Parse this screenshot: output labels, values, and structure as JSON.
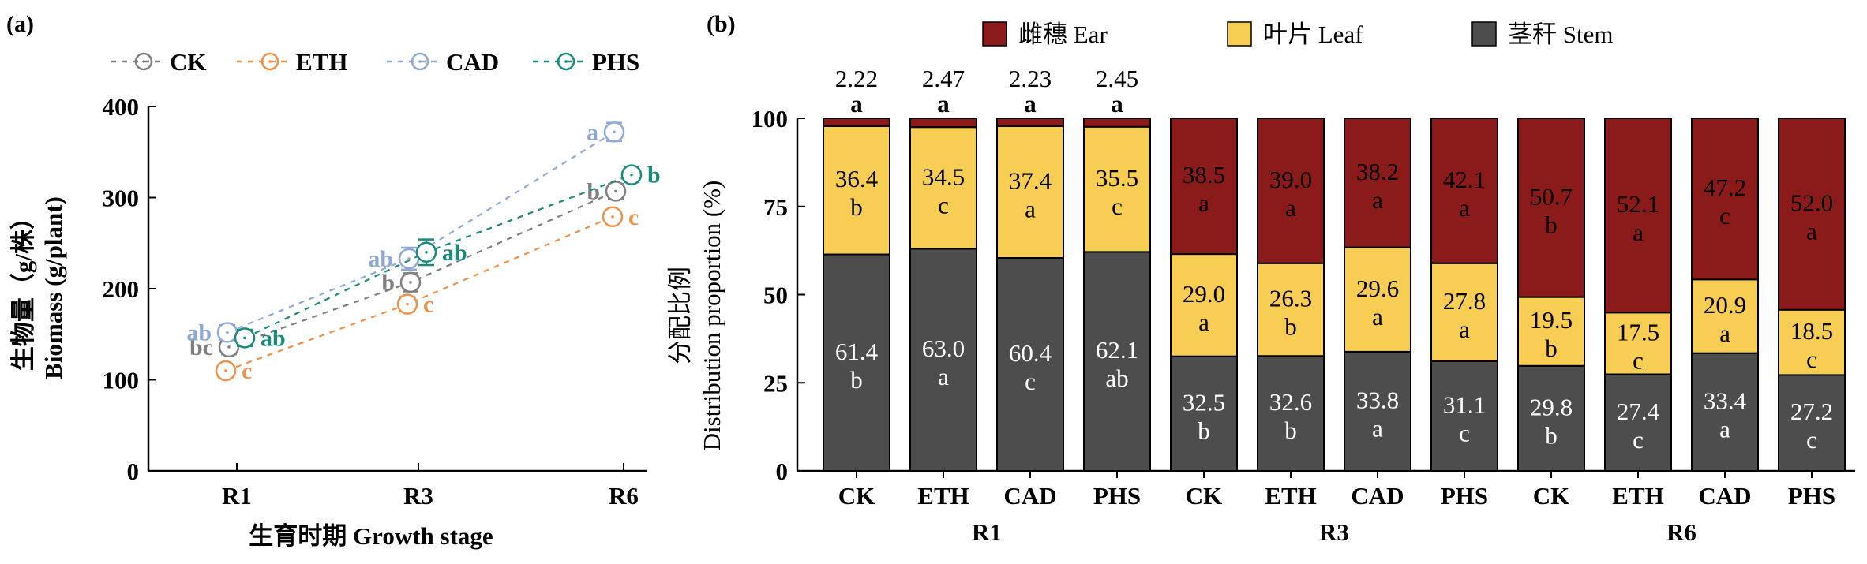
{
  "chart_data": [
    {
      "type": "line",
      "panel_label": "(a)",
      "xlabel": "生育时期 Growth stage",
      "ylabel_cn": "生物量（g/株）",
      "ylabel_en": "Biomass (g/plant)",
      "categories": [
        "R1",
        "R3",
        "R6"
      ],
      "ylim": [
        0,
        400
      ],
      "yticks": [
        0,
        100,
        200,
        300,
        400
      ],
      "legend_position": "top",
      "series": [
        {
          "name": "CK",
          "color": "#7f7f7f",
          "values": [
            136,
            207,
            307
          ],
          "errors": [
            8,
            10,
            8
          ],
          "letters": [
            "bc",
            "b",
            "b"
          ]
        },
        {
          "name": "ETH",
          "color": "#f0914a",
          "values": [
            110,
            183,
            279
          ],
          "errors": [
            7,
            8,
            7
          ],
          "letters": [
            "c",
            "c",
            "c"
          ]
        },
        {
          "name": "CAD",
          "color": "#8fa8d6",
          "values": [
            152,
            233,
            372
          ],
          "errors": [
            8,
            12,
            10
          ],
          "letters": [
            "ab",
            "ab",
            "a"
          ]
        },
        {
          "name": "PHS",
          "color": "#1a8a7a",
          "values": [
            146,
            240,
            325
          ],
          "errors": [
            9,
            14,
            8
          ],
          "letters": [
            "ab",
            "ab",
            "b"
          ]
        }
      ]
    },
    {
      "type": "bar",
      "stacked": true,
      "panel_label": "(b)",
      "ylabel_cn": "分配比例",
      "ylabel_en": "Distribution proportion (%)",
      "ylim": [
        0,
        100
      ],
      "yticks": [
        0,
        25,
        50,
        75,
        100
      ],
      "legend_position": "top",
      "groups": [
        "R1",
        "R3",
        "R6"
      ],
      "categories": [
        "CK",
        "ETH",
        "CAD",
        "PHS",
        "CK",
        "ETH",
        "CAD",
        "PHS",
        "CK",
        "ETH",
        "CAD",
        "PHS"
      ],
      "series": [
        {
          "name": "茎秆 Stem",
          "color": "#4d4d4d",
          "values": [
            61.4,
            63.0,
            60.4,
            62.1,
            32.5,
            32.6,
            33.8,
            31.1,
            29.8,
            27.4,
            33.4,
            27.2
          ],
          "letters": [
            "b",
            "a",
            "c",
            "ab",
            "b",
            "b",
            "a",
            "c",
            "b",
            "c",
            "a",
            "c"
          ]
        },
        {
          "name": "叶片 Leaf",
          "color": "#f7cd54",
          "values": [
            36.4,
            34.5,
            37.4,
            35.5,
            29.0,
            26.3,
            29.6,
            27.8,
            19.5,
            17.5,
            20.9,
            18.5
          ],
          "letters": [
            "b",
            "c",
            "a",
            "c",
            "a",
            "b",
            "a",
            "a",
            "b",
            "c",
            "a",
            "c"
          ]
        },
        {
          "name": "雌穗 Ear",
          "color": "#8b1a1a",
          "values": [
            2.22,
            2.47,
            2.23,
            2.45,
            38.5,
            39.0,
            38.2,
            42.1,
            50.7,
            52.1,
            47.2,
            52.0
          ],
          "labels": [
            "",
            "",
            "",
            "",
            "38.5",
            "39.0",
            "38.2",
            "42.1",
            "50.7",
            "52.1",
            "47.2",
            "52.0"
          ],
          "letters": [
            "",
            "",
            "",
            "",
            "a",
            "a",
            "a",
            "a",
            "b",
            "a",
            "c",
            "a"
          ]
        }
      ],
      "top_labels": [
        "2.22",
        "2.47",
        "2.23",
        "2.45"
      ],
      "top_letters": [
        "a",
        "a",
        "a",
        "a"
      ],
      "legend": [
        "雌穗 Ear",
        "叶片 Leaf",
        "茎秆 Stem"
      ]
    }
  ]
}
